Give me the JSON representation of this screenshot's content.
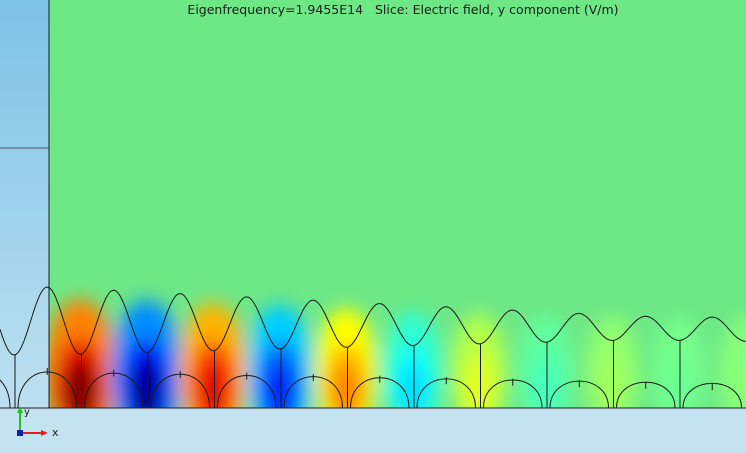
{
  "plot": {
    "title": "Eigenfrequency=1.9455E14   Slice: Electric field, y component (V/m)",
    "eigenfrequency": "1.9455E14",
    "expression": "Electric field, y component",
    "unit": "V/m"
  },
  "axes": {
    "x_label": "x",
    "y_label": "y",
    "x_color": "#e0201b",
    "y_color": "#1cc41c",
    "origin_color": "#1a1aa0"
  },
  "colors": {
    "background_top": "#7ec2e6",
    "background_bottom": "#c4e3f1",
    "field_zero": "#6ee887",
    "field_positive_max": "#b00000",
    "field_negative_max": "#00008f",
    "outline": "#1a1a1a"
  },
  "field": {
    "comment_units": "relative",
    "nodes": [
      1.0,
      -0.95,
      0.8,
      -0.7,
      0.5,
      -0.32,
      0.2,
      -0.12,
      0.07,
      -0.04,
      0.02
    ]
  }
}
